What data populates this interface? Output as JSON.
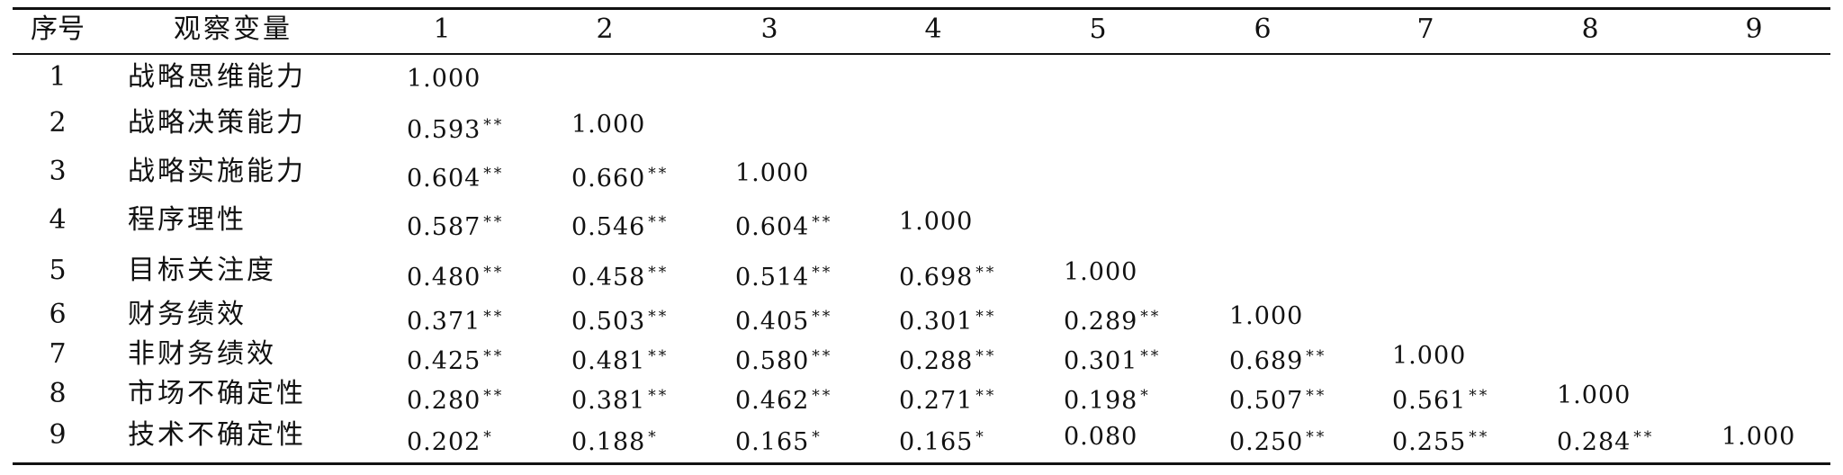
{
  "table": {
    "headers": [
      "序号",
      "观察变量",
      "1",
      "2",
      "3",
      "4",
      "5",
      "6",
      "7",
      "8",
      "9"
    ],
    "rows": [
      {
        "index": "1",
        "name": "战略思维能力",
        "values": [
          [
            "1.000",
            ""
          ]
        ]
      },
      {
        "index": "2",
        "name": "战略决策能力",
        "values": [
          [
            "0.593",
            "**"
          ],
          [
            "1.000",
            ""
          ]
        ]
      },
      {
        "index": "3",
        "name": "战略实施能力",
        "values": [
          [
            "0.604",
            "**"
          ],
          [
            "0.660",
            "**"
          ],
          [
            "1.000",
            ""
          ]
        ]
      },
      {
        "index": "4",
        "name": "程序理性",
        "values": [
          [
            "0.587",
            "**"
          ],
          [
            "0.546",
            "**"
          ],
          [
            "0.604",
            "**"
          ],
          [
            "1.000",
            ""
          ]
        ]
      },
      {
        "index": "5",
        "name": "目标关注度",
        "values": [
          [
            "0.480",
            "**"
          ],
          [
            "0.458",
            "**"
          ],
          [
            "0.514",
            "**"
          ],
          [
            "0.698",
            "**"
          ],
          [
            "1.000",
            ""
          ]
        ]
      },
      {
        "index": "6",
        "name": "财务绩效",
        "values": [
          [
            "0.371",
            "**"
          ],
          [
            "0.503",
            "**"
          ],
          [
            "0.405",
            "**"
          ],
          [
            "0.301",
            "**"
          ],
          [
            "0.289",
            "**"
          ],
          [
            "1.000",
            ""
          ]
        ]
      },
      {
        "index": "7",
        "name": "非财务绩效",
        "values": [
          [
            "0.425",
            "**"
          ],
          [
            "0.481",
            "**"
          ],
          [
            "0.580",
            "**"
          ],
          [
            "0.288",
            "**"
          ],
          [
            "0.301",
            "**"
          ],
          [
            "0.689",
            "**"
          ],
          [
            "1.000",
            ""
          ]
        ]
      },
      {
        "index": "8",
        "name": "市场不确定性",
        "values": [
          [
            "0.280",
            "**"
          ],
          [
            "0.381",
            "**"
          ],
          [
            "0.462",
            "**"
          ],
          [
            "0.271",
            "**"
          ],
          [
            "0.198",
            "*"
          ],
          [
            "0.507",
            "**"
          ],
          [
            "0.561",
            "**"
          ],
          [
            "1.000",
            ""
          ]
        ]
      },
      {
        "index": "9",
        "name": "技术不确定性",
        "values": [
          [
            "0.202",
            "*"
          ],
          [
            "0.188",
            "*"
          ],
          [
            "0.165",
            "*"
          ],
          [
            "0.165",
            "*"
          ],
          [
            "0.080",
            ""
          ],
          [
            "0.250",
            "**"
          ],
          [
            "0.255",
            "**"
          ],
          [
            "0.284",
            "**"
          ],
          [
            "1.000",
            ""
          ]
        ]
      }
    ]
  }
}
